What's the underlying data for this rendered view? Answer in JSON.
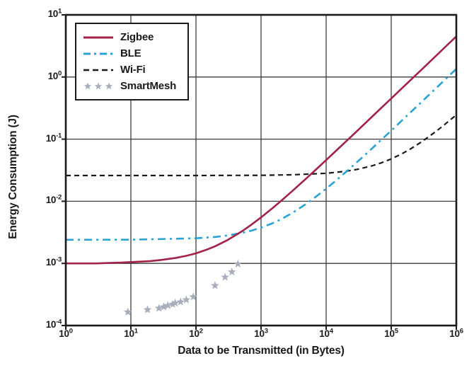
{
  "chart_data": {
    "type": "line",
    "title": "",
    "xlabel": "Data to be Transmitted (in Bytes)",
    "ylabel": "Energy Consumption (J)",
    "xscale": "log",
    "yscale": "log",
    "xlim": [
      1,
      1000000
    ],
    "ylim": [
      0.0001,
      10
    ],
    "x_tick_exponents": [
      0,
      1,
      2,
      3,
      4,
      5,
      6
    ],
    "y_tick_exponents": [
      1,
      0,
      -1,
      -2,
      -3,
      -4
    ],
    "grid": true,
    "legend_position": "top-left",
    "colors": {
      "frame": "#1a1a1a",
      "grid": "#3d3d3d",
      "text": "#1a1a1a",
      "background": "#ffffff"
    },
    "series": [
      {
        "name": "Zigbee",
        "style": "solid",
        "color": "#a32248",
        "x": [
          1,
          2,
          3,
          5,
          7,
          10,
          15,
          20,
          30,
          50,
          70,
          100,
          150,
          200,
          300,
          500,
          700,
          1000,
          1500,
          2000,
          3000,
          5000,
          7000,
          10000,
          15000,
          20000,
          30000,
          50000,
          70000,
          100000,
          150000,
          200000,
          300000,
          500000,
          700000,
          1000000
        ],
        "y": [
          0.001,
          0.001,
          0.001,
          0.00102,
          0.00103,
          0.00105,
          0.00107,
          0.00109,
          0.00114,
          0.00123,
          0.00132,
          0.00145,
          0.00168,
          0.0019,
          0.00235,
          0.00325,
          0.00415,
          0.0055,
          0.00775,
          0.01,
          0.0145,
          0.0235,
          0.0325,
          0.046,
          0.0685,
          0.091,
          0.136,
          0.226,
          0.316,
          0.451,
          0.676,
          0.901,
          1.35,
          2.25,
          3.15,
          4.5
        ]
      },
      {
        "name": "BLE",
        "style": "dash-dot",
        "color": "#29a3d5",
        "x": [
          1,
          10,
          100,
          200,
          300,
          500,
          700,
          1000,
          1500,
          2000,
          3000,
          5000,
          7000,
          10000,
          15000,
          20000,
          30000,
          50000,
          70000,
          100000,
          150000,
          200000,
          300000,
          500000,
          700000,
          1000000
        ],
        "y": [
          0.0024,
          0.00241,
          0.00254,
          0.00267,
          0.00281,
          0.00308,
          0.00335,
          0.00375,
          0.00443,
          0.0051,
          0.00645,
          0.00915,
          0.0119,
          0.0159,
          0.0227,
          0.0294,
          0.0429,
          0.0699,
          0.0969,
          0.137,
          0.205,
          0.272,
          0.407,
          0.677,
          0.947,
          1.35
        ]
      },
      {
        "name": "Wi-Fi",
        "style": "dashed",
        "color": "#1a1a1a",
        "x": [
          1,
          10,
          100,
          1000,
          3000,
          10000,
          20000,
          30000,
          50000,
          70000,
          100000,
          150000,
          200000,
          300000,
          500000,
          700000,
          1000000
        ],
        "y": [
          0.026,
          0.026,
          0.026,
          0.0262,
          0.0267,
          0.0282,
          0.0304,
          0.0326,
          0.037,
          0.0414,
          0.048,
          0.059,
          0.07,
          0.092,
          0.136,
          0.18,
          0.246
        ]
      },
      {
        "name": "SmartMesh",
        "style": "star-scatter",
        "color": "#a8aebb",
        "x": [
          9,
          18,
          27,
          32,
          37,
          44,
          48,
          58,
          71,
          91,
          196,
          280,
          356,
          440
        ],
        "y": [
          0.000165,
          0.00018,
          0.00019,
          0.0002,
          0.00021,
          0.00022,
          0.00023,
          0.00024,
          0.00026,
          0.00029,
          0.00044,
          0.0006,
          0.00073,
          0.00098
        ]
      }
    ]
  }
}
